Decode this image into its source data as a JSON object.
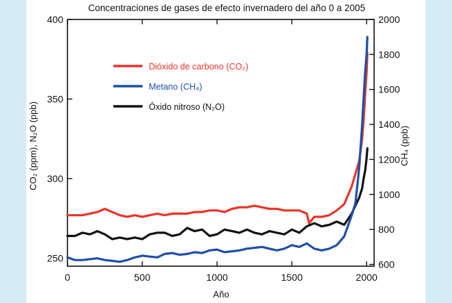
{
  "chart_data": {
    "type": "line",
    "title": "Concentraciones de gases de efecto invernadero del año 0 a 2005",
    "xlabel": "Año",
    "ylabel_left": "CO₂ (ppm), N₂O (ppb)",
    "ylabel_right": "CH₄ (ppb)",
    "xlim": [
      0,
      2050
    ],
    "ylim_left": [
      245,
      400
    ],
    "ylim_right": [
      590,
      2000
    ],
    "x_ticks": [
      "0",
      "500",
      "1000",
      "1500",
      "2000"
    ],
    "y_ticks_left": [
      "250",
      "300",
      "350",
      "400"
    ],
    "y_ticks_right": [
      "600",
      "800",
      "1000",
      "1200",
      "1400",
      "1600",
      "1800",
      "2000"
    ],
    "grid": false,
    "legend_position": "top-left",
    "series": [
      {
        "name": "Dióxido de carbono (CO₂)",
        "axis": "left",
        "color": "#e8352b",
        "x": [
          0,
          50,
          100,
          150,
          200,
          250,
          300,
          350,
          400,
          450,
          500,
          550,
          600,
          650,
          700,
          750,
          800,
          850,
          900,
          950,
          1000,
          1050,
          1100,
          1150,
          1200,
          1250,
          1300,
          1350,
          1400,
          1450,
          1500,
          1550,
          1600,
          1615,
          1650,
          1700,
          1750,
          1800,
          1850,
          1900,
          1925,
          1950,
          1970,
          1980,
          1990,
          2000,
          2005
        ],
        "values": [
          277,
          277,
          277,
          278,
          279,
          281,
          279,
          277,
          276,
          277,
          276,
          277,
          278,
          277,
          278,
          278,
          278,
          279,
          279,
          280,
          280,
          279,
          281,
          282,
          282,
          283,
          282,
          281,
          281,
          280,
          280,
          280,
          278,
          272,
          276,
          276,
          277,
          280,
          284,
          295,
          303,
          311,
          325,
          337,
          353,
          367,
          379
        ]
      },
      {
        "name": "Metano (CH₄)",
        "axis": "right",
        "color": "#1f4fa8",
        "x": [
          0,
          50,
          100,
          150,
          200,
          250,
          300,
          350,
          400,
          450,
          500,
          550,
          600,
          650,
          700,
          750,
          800,
          850,
          900,
          950,
          1000,
          1050,
          1100,
          1150,
          1200,
          1250,
          1300,
          1350,
          1400,
          1450,
          1500,
          1550,
          1600,
          1650,
          1700,
          1750,
          1800,
          1850,
          1900,
          1925,
          1950,
          1970,
          1980,
          1990,
          2000,
          2005
        ],
        "values": [
          640,
          625,
          625,
          630,
          635,
          625,
          620,
          615,
          625,
          640,
          650,
          645,
          640,
          660,
          665,
          655,
          660,
          670,
          665,
          680,
          685,
          670,
          675,
          680,
          690,
          695,
          700,
          690,
          680,
          690,
          710,
          700,
          720,
          690,
          680,
          690,
          710,
          760,
          880,
          950,
          1150,
          1400,
          1550,
          1700,
          1800,
          1900
        ]
      },
      {
        "name": "Óxido nitroso (N₂O)",
        "axis": "left",
        "color": "#111111",
        "x": [
          0,
          50,
          100,
          150,
          200,
          250,
          300,
          350,
          400,
          450,
          500,
          550,
          600,
          650,
          700,
          750,
          800,
          850,
          900,
          950,
          1000,
          1050,
          1100,
          1150,
          1200,
          1250,
          1300,
          1350,
          1400,
          1450,
          1500,
          1550,
          1600,
          1650,
          1700,
          1750,
          1800,
          1850,
          1900,
          1925,
          1950,
          1970,
          1980,
          1990,
          2000,
          2005
        ],
        "values": [
          264,
          264,
          266,
          265,
          267,
          265,
          262,
          263,
          262,
          263,
          262,
          265,
          266,
          266,
          264,
          265,
          269,
          267,
          268,
          264,
          265,
          268,
          267,
          266,
          268,
          266,
          265,
          267,
          266,
          265,
          268,
          266,
          270,
          272,
          270,
          271,
          273,
          271,
          278,
          283,
          288,
          294,
          300,
          305,
          313,
          319
        ]
      }
    ]
  }
}
